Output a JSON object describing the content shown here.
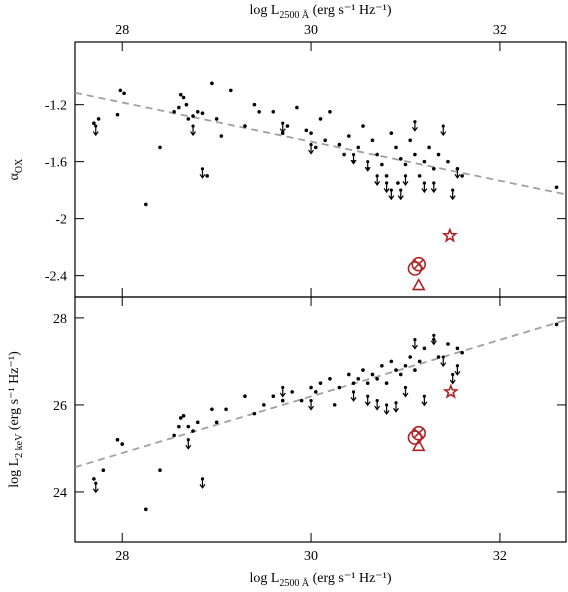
{
  "chart_data": [
    {
      "type": "scatter",
      "xlabel": {
        "main": "log L",
        "sub": "2500 Å",
        "unit": " (erg s⁻¹ Hz⁻¹)"
      },
      "ylabel": {
        "main": "α",
        "sub": "OX"
      },
      "xlim": [
        27.5,
        32.7
      ],
      "xticks": [
        28,
        30,
        32
      ],
      "xticks_top": true,
      "ylim": [
        -2.55,
        -0.76
      ],
      "yticks": [
        -1.2,
        -1.6,
        -2,
        -2.4
      ],
      "color": "#000000",
      "detections": {
        "x": [
          27.7,
          27.75,
          27.95,
          27.98,
          28.02,
          28.25,
          28.4,
          28.55,
          28.6,
          28.62,
          28.65,
          28.68,
          28.7,
          28.75,
          28.8,
          28.85,
          28.9,
          28.95,
          29.0,
          29.05,
          29.15,
          29.3,
          29.4,
          29.45,
          29.6,
          29.7,
          29.75,
          29.85,
          29.95,
          30.0,
          30.05,
          30.1,
          30.15,
          30.2,
          30.3,
          30.35,
          30.4,
          30.45,
          30.5,
          30.55,
          30.6,
          30.65,
          30.7,
          30.75,
          30.8,
          30.85,
          30.9,
          30.92,
          30.95,
          31.0,
          31.05,
          31.1,
          31.15,
          31.2,
          31.25,
          31.3,
          31.35,
          31.45,
          31.55,
          31.6,
          32.6
        ],
        "y": [
          -1.33,
          -1.3,
          -1.27,
          -1.1,
          -1.12,
          -1.9,
          -1.5,
          -1.25,
          -1.22,
          -1.13,
          -1.15,
          -1.2,
          -1.3,
          -1.28,
          -1.25,
          -1.26,
          -1.7,
          -1.05,
          -1.3,
          -1.42,
          -1.1,
          -1.35,
          -1.2,
          -1.25,
          -1.25,
          -1.4,
          -1.35,
          -1.22,
          -1.38,
          -1.4,
          -1.5,
          -1.3,
          -1.45,
          -1.25,
          -1.48,
          -1.55,
          -1.42,
          -1.6,
          -1.5,
          -1.35,
          -1.65,
          -1.45,
          -1.55,
          -1.62,
          -1.7,
          -1.4,
          -1.5,
          -1.75,
          -1.58,
          -1.62,
          -1.45,
          -1.55,
          -1.7,
          -1.6,
          -1.5,
          -1.65,
          -1.55,
          -1.6,
          -1.65,
          -1.7,
          -1.78
        ]
      },
      "upper_limits": {
        "x": [
          27.72,
          28.75,
          28.85,
          29.7,
          30.0,
          30.45,
          30.6,
          30.7,
          30.8,
          30.85,
          30.95,
          31.0,
          31.1,
          31.2,
          31.3,
          31.4,
          31.5,
          31.55
        ],
        "y": [
          -1.35,
          -1.35,
          -1.65,
          -1.33,
          -1.48,
          -1.55,
          -1.6,
          -1.7,
          -1.75,
          -1.8,
          -1.8,
          -1.7,
          -1.32,
          -1.75,
          -1.75,
          -1.35,
          -1.8,
          -1.65
        ]
      },
      "fit": {
        "x": [
          27.5,
          32.7
        ],
        "y": [
          -1.116,
          -1.83
        ],
        "color": "#a0a0a0"
      },
      "marker_color": "#b22222",
      "markers": [
        {
          "shape": "star",
          "x": 31.47,
          "y": -2.12
        },
        {
          "shape": "circle-x",
          "x": 31.14,
          "y": -2.32
        },
        {
          "shape": "circle",
          "x": 31.1,
          "y": -2.35
        },
        {
          "shape": "triangle",
          "x": 31.14,
          "y": -2.47
        }
      ]
    },
    {
      "type": "scatter",
      "xlabel": {
        "main": "log L",
        "sub": "2500 Å",
        "unit": " (erg s⁻¹ Hz⁻¹)"
      },
      "ylabel": {
        "main": "log L",
        "sub": "2 keV",
        "unit": " (erg s⁻¹ Hz⁻¹)"
      },
      "xlim": [
        27.5,
        32.7
      ],
      "xticks": [
        28,
        30,
        32
      ],
      "xticks_top": false,
      "ylim": [
        22.85,
        28.48
      ],
      "yticks": [
        28,
        26,
        24
      ],
      "color": "#000000",
      "detections": {
        "x": [
          27.7,
          27.8,
          27.95,
          28.0,
          28.25,
          28.4,
          28.55,
          28.6,
          28.62,
          28.65,
          28.7,
          28.75,
          28.8,
          28.95,
          29.0,
          29.1,
          29.3,
          29.4,
          29.5,
          29.6,
          29.7,
          29.8,
          29.9,
          30.0,
          30.05,
          30.1,
          30.2,
          30.25,
          30.3,
          30.4,
          30.45,
          30.5,
          30.55,
          30.6,
          30.65,
          30.7,
          30.75,
          30.8,
          30.85,
          30.9,
          30.95,
          31.0,
          31.05,
          31.1,
          31.15,
          31.2,
          31.3,
          31.35,
          31.45,
          31.55,
          31.6,
          32.6
        ],
        "y": [
          24.3,
          24.5,
          25.2,
          25.1,
          23.6,
          24.5,
          25.3,
          25.5,
          25.7,
          25.75,
          25.5,
          25.4,
          25.6,
          25.9,
          25.6,
          25.9,
          26.2,
          25.8,
          26.0,
          26.2,
          26.1,
          26.3,
          26.1,
          26.4,
          26.3,
          26.5,
          26.6,
          26.0,
          26.4,
          26.7,
          26.5,
          26.6,
          26.8,
          26.5,
          26.7,
          26.6,
          26.9,
          26.5,
          27.0,
          26.8,
          26.7,
          26.9,
          27.1,
          26.8,
          27.0,
          27.3,
          27.5,
          27.1,
          27.4,
          27.3,
          27.2,
          27.85
        ]
      },
      "upper_limits": {
        "x": [
          27.72,
          28.7,
          28.85,
          29.7,
          30.0,
          30.45,
          30.6,
          30.7,
          30.8,
          30.9,
          31.0,
          31.1,
          31.2,
          31.3,
          31.4,
          31.5,
          31.55
        ],
        "y": [
          24.2,
          25.2,
          24.3,
          26.4,
          26.1,
          26.3,
          26.2,
          26.1,
          26.0,
          26.05,
          26.4,
          27.5,
          26.2,
          27.6,
          27.1,
          26.7,
          26.9
        ]
      },
      "fit": {
        "x": [
          27.5,
          32.7
        ],
        "y": [
          24.57,
          27.95
        ],
        "color": "#a0a0a0"
      },
      "marker_color": "#b22222",
      "markers": [
        {
          "shape": "star",
          "x": 31.48,
          "y": 26.3
        },
        {
          "shape": "circle-x",
          "x": 31.14,
          "y": 25.35
        },
        {
          "shape": "circle",
          "x": 31.1,
          "y": 25.25
        },
        {
          "shape": "triangle",
          "x": 31.14,
          "y": 25.05
        }
      ]
    }
  ]
}
